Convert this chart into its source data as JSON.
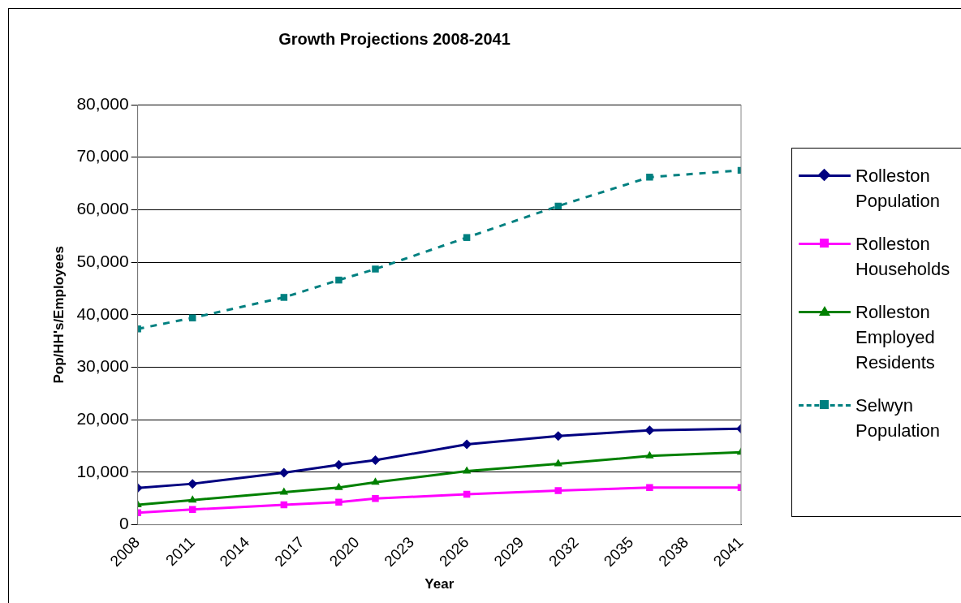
{
  "chart_data": {
    "type": "line",
    "title": "Growth Projections 2008-2041",
    "xlabel": "Year",
    "ylabel": "Pop/HH's/Employees",
    "x": [
      2008,
      2011,
      2016,
      2019,
      2021,
      2026,
      2031,
      2036,
      2041
    ],
    "xlim": [
      2008,
      2041
    ],
    "xticks": [
      2008,
      2011,
      2014,
      2017,
      2020,
      2023,
      2026,
      2029,
      2032,
      2035,
      2038,
      2041
    ],
    "ylim": [
      0,
      80000
    ],
    "yticks": [
      0,
      {
        "value": 10000,
        "label": "10,000"
      },
      {
        "value": 20000,
        "label": "20,000"
      },
      {
        "value": 30000,
        "label": "30,000"
      },
      {
        "value": 40000,
        "label": "40,000"
      },
      {
        "value": 50000,
        "label": "50,000"
      },
      {
        "value": 60000,
        "label": "60,000"
      },
      {
        "value": 70000,
        "label": "70,000"
      },
      {
        "value": 80000,
        "label": "80,000"
      }
    ],
    "grid": "y",
    "legend": "right",
    "series": [
      {
        "name": "Rolleston Population",
        "color": "#000080",
        "marker": "diamond",
        "line_style": "solid",
        "values": [
          7000,
          7800,
          9900,
          11400,
          12300,
          15300,
          16900,
          18000,
          18300
        ]
      },
      {
        "name": "Rolleston Households",
        "color": "#ff00ff",
        "marker": "square",
        "line_style": "solid",
        "values": [
          2300,
          2900,
          3800,
          4300,
          5000,
          5800,
          6500,
          7100,
          7100
        ]
      },
      {
        "name": "Rolleston Employed Residents",
        "color": "#008000",
        "marker": "triangle",
        "line_style": "solid",
        "values": [
          3800,
          4700,
          6200,
          7100,
          8100,
          10200,
          11600,
          13100,
          13800
        ]
      },
      {
        "name": "Selwyn Population",
        "color": "#008080",
        "marker": "square",
        "line_style": "dashed",
        "values": [
          37300,
          39400,
          43300,
          46600,
          48700,
          54700,
          60700,
          66200,
          67500
        ]
      }
    ]
  }
}
